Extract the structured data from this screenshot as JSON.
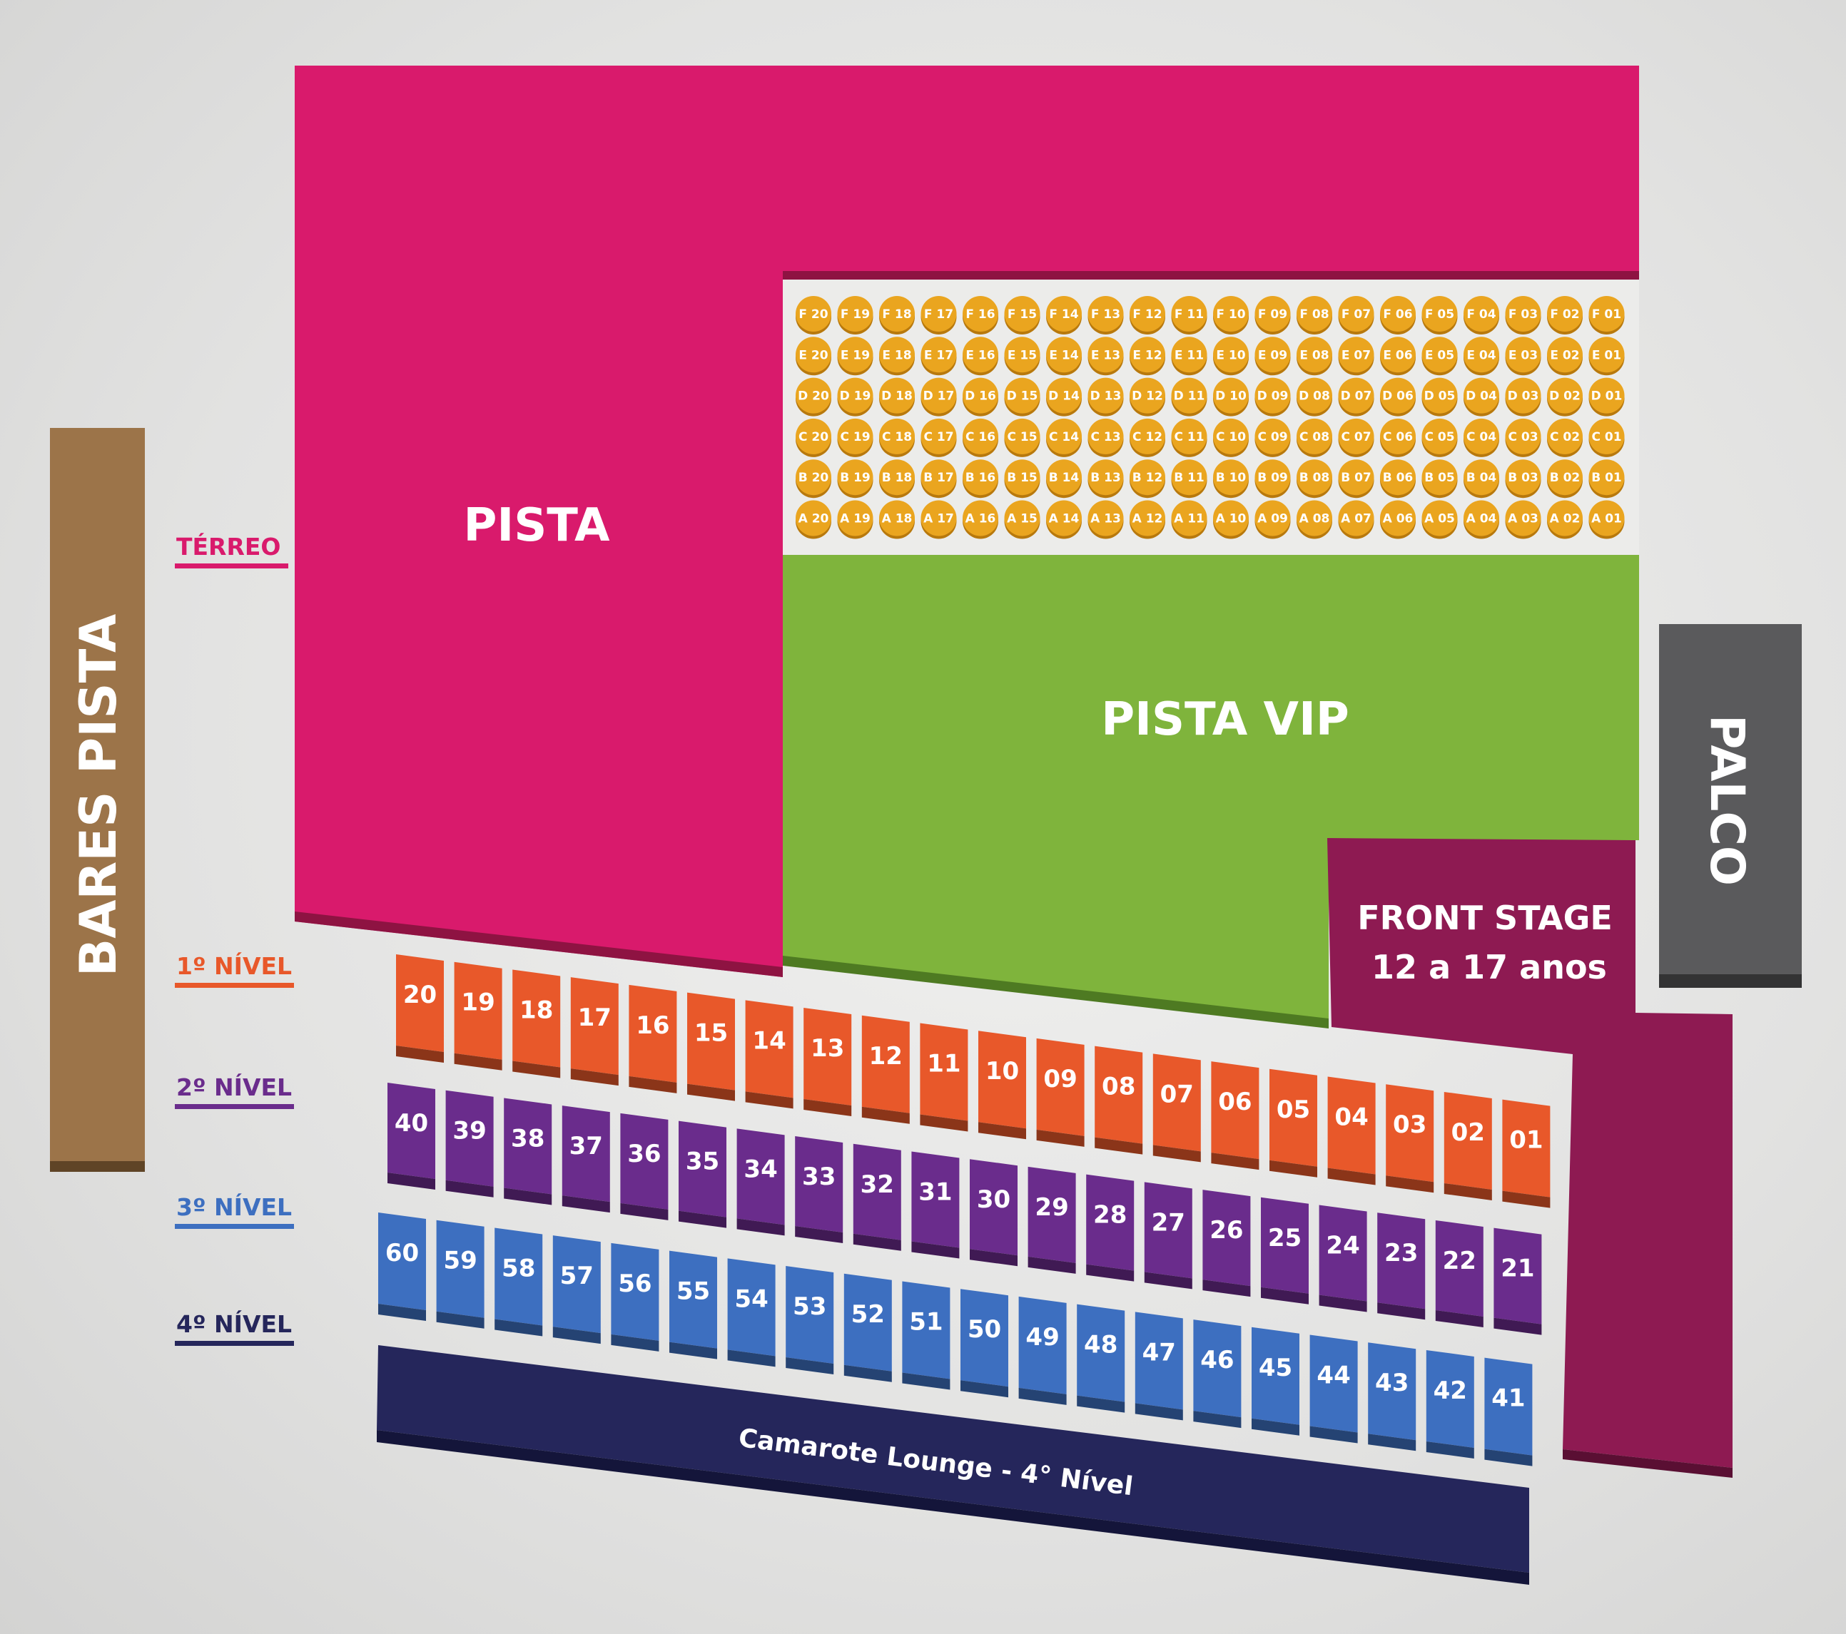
{
  "zones": {
    "pista": {
      "label": "PISTA",
      "color": "#d91a6c"
    },
    "pista_vip": {
      "label": "PISTA VIP",
      "color": "#7fb43c"
    },
    "front_stage": {
      "line1": "FRONT STAGE",
      "line2": "12 a 17 anos",
      "color": "#8e1a52"
    },
    "palco": {
      "label": "PALCO",
      "color": "#5a5a5c"
    },
    "bares_pista": {
      "label": "BARES PISTA",
      "color": "#9c7449"
    },
    "camarote_lounge": {
      "label": "Camarote Lounge - 4° Nível",
      "color": "#25265b"
    }
  },
  "levels": [
    {
      "label": "TÉRREO",
      "color": "#d91a6c"
    },
    {
      "label": "1º NÍVEL",
      "color": "#e8582a"
    },
    {
      "label": "2º NÍVEL",
      "color": "#6a2c8c"
    },
    {
      "label": "3º NÍVEL",
      "color": "#3d6fc0"
    },
    {
      "label": "4º NÍVEL",
      "color": "#25265b"
    }
  ],
  "seating": {
    "color": "#eaa51f",
    "rows": [
      "F",
      "E",
      "D",
      "C",
      "B",
      "A"
    ],
    "columns": [
      "20",
      "19",
      "18",
      "17",
      "16",
      "15",
      "14",
      "13",
      "12",
      "11",
      "10",
      "09",
      "08",
      "07",
      "06",
      "05",
      "04",
      "03",
      "02",
      "01"
    ]
  },
  "camarotes": {
    "nivel_1": {
      "color": "#e8582a",
      "numbers": [
        "20",
        "19",
        "18",
        "17",
        "16",
        "15",
        "14",
        "13",
        "12",
        "11",
        "10",
        "09",
        "08",
        "07",
        "06",
        "05",
        "04",
        "03",
        "02",
        "01"
      ]
    },
    "nivel_2": {
      "color": "#6a2c8c",
      "numbers": [
        "40",
        "39",
        "38",
        "37",
        "36",
        "35",
        "34",
        "33",
        "32",
        "31",
        "30",
        "29",
        "28",
        "27",
        "26",
        "25",
        "24",
        "23",
        "22",
        "21"
      ]
    },
    "nivel_3": {
      "color": "#3d6fc0",
      "numbers": [
        "60",
        "59",
        "58",
        "57",
        "56",
        "55",
        "54",
        "53",
        "52",
        "51",
        "50",
        "49",
        "48",
        "47",
        "46",
        "45",
        "44",
        "43",
        "42",
        "41"
      ]
    }
  }
}
